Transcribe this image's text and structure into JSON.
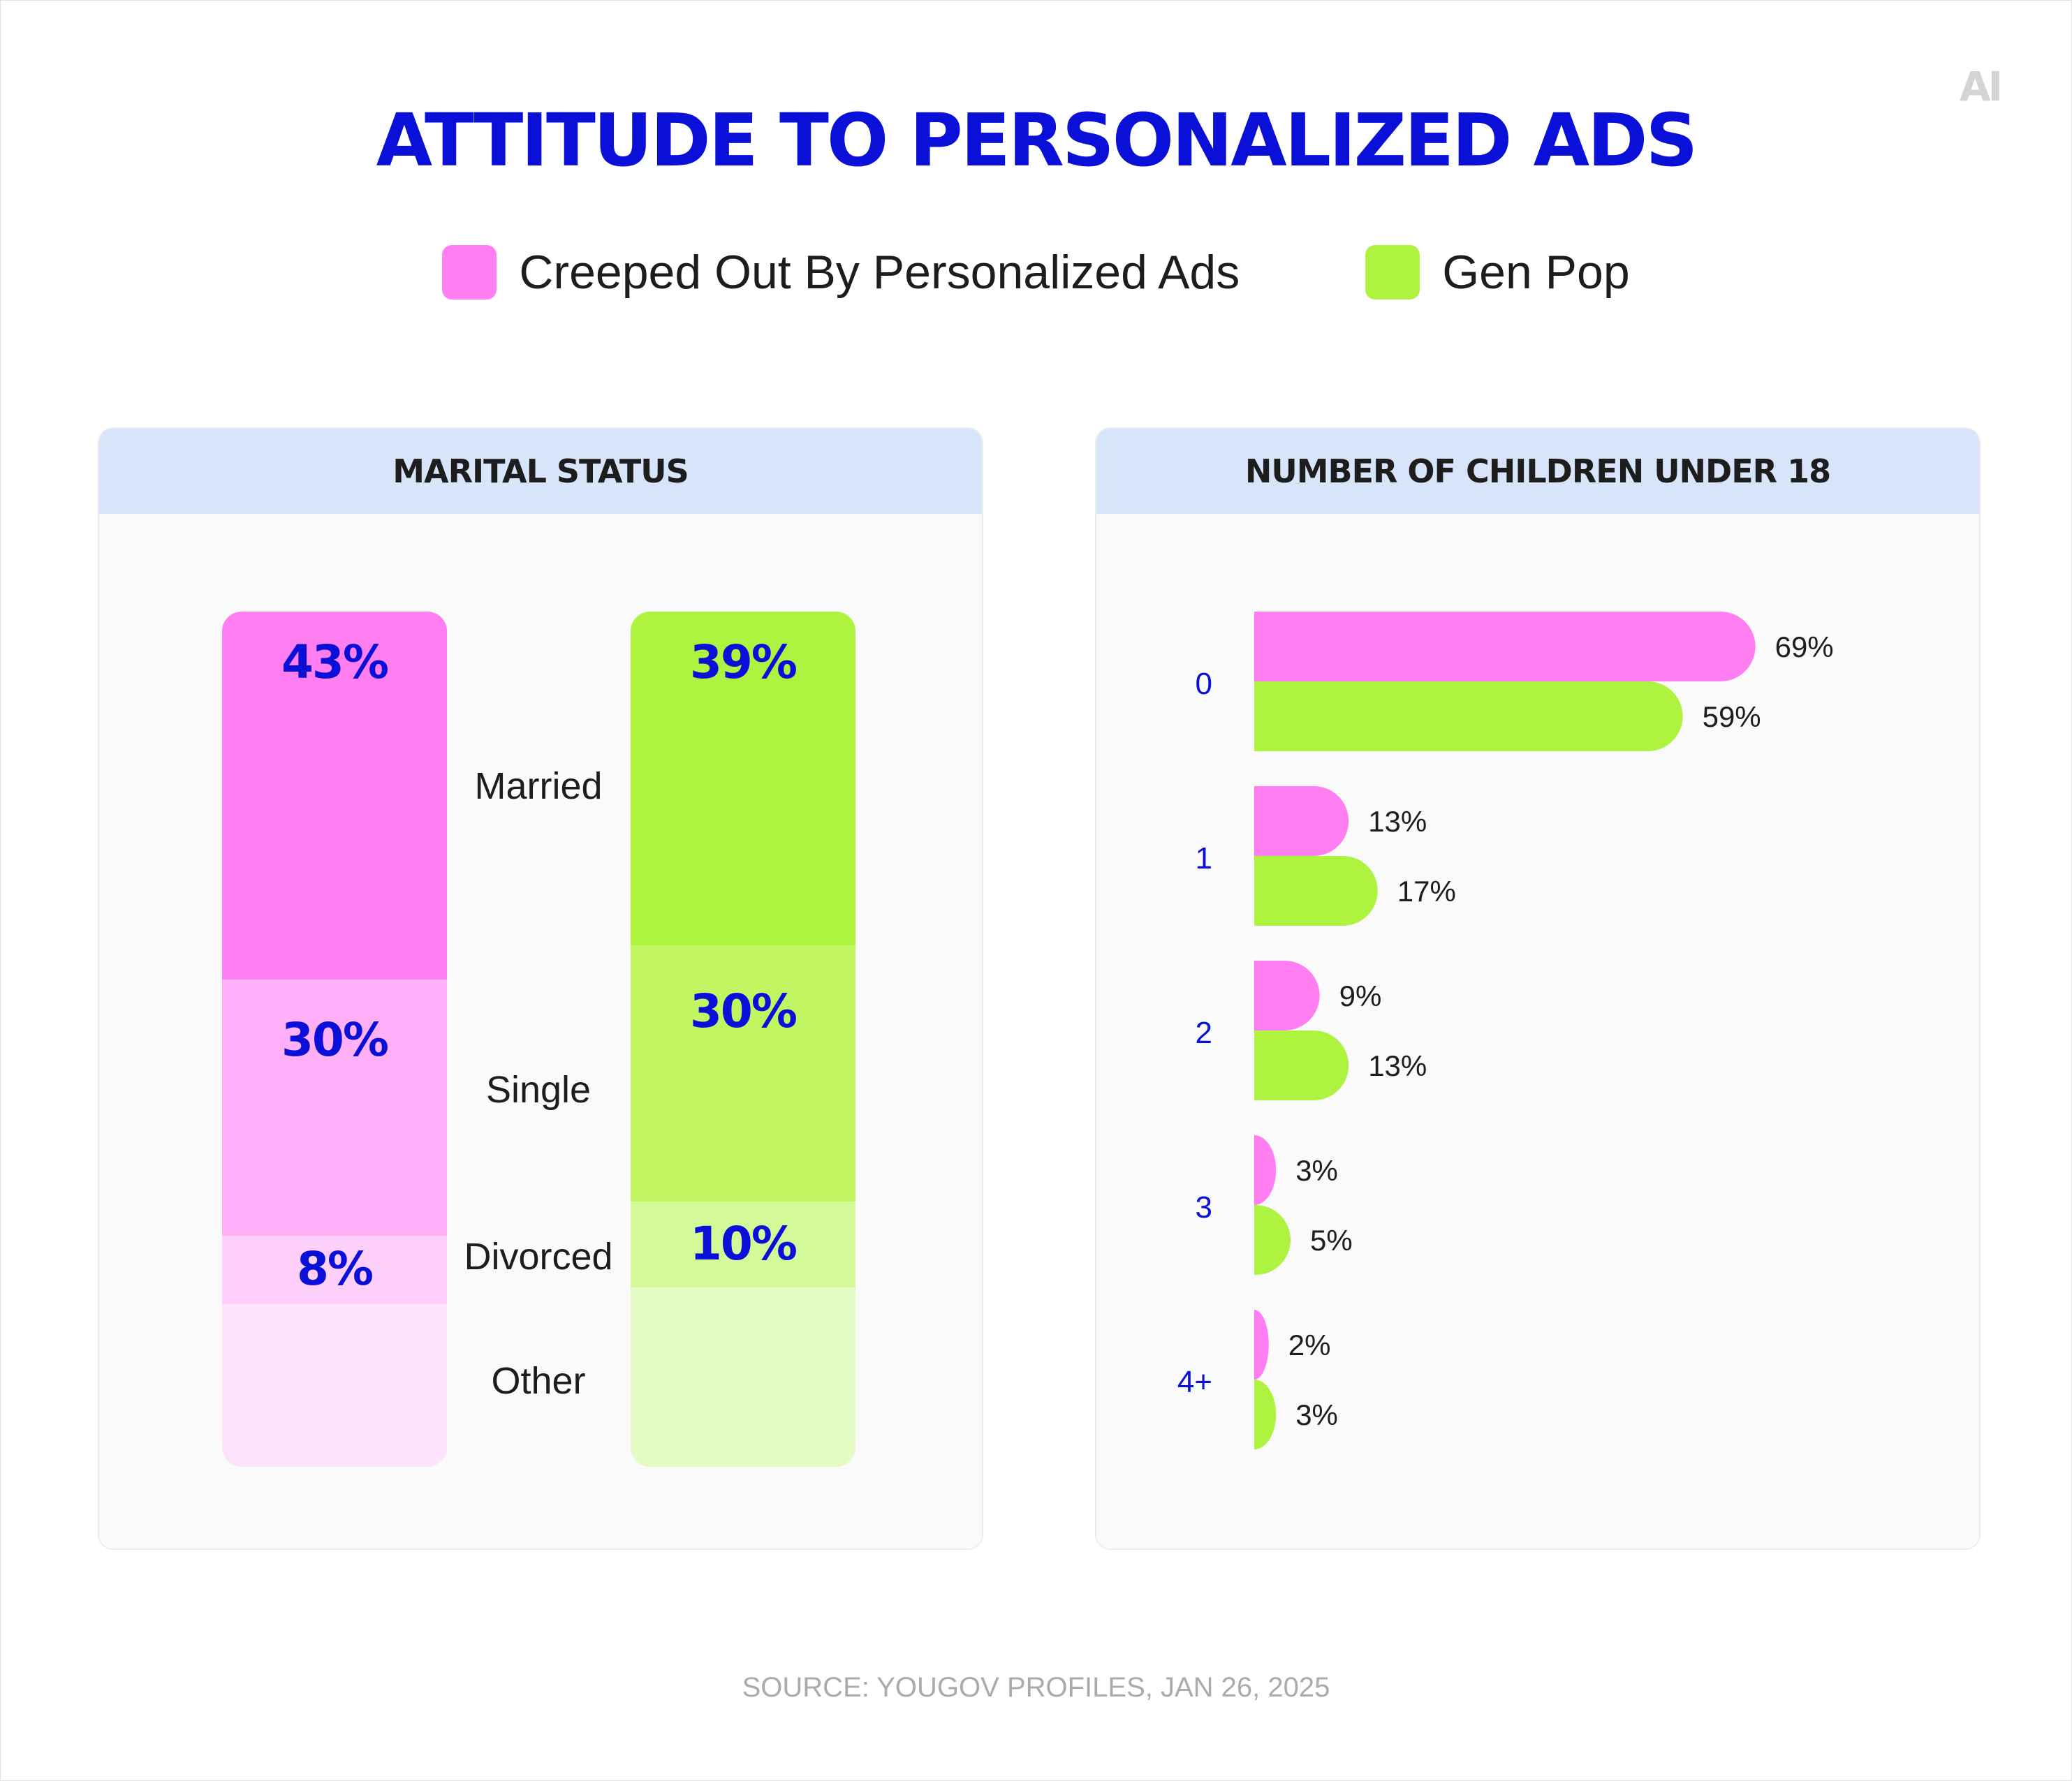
{
  "logo_text": "AI",
  "title": "ATTITUDE TO PERSONALIZED ADS",
  "legend": [
    {
      "label": "Creeped Out By Personalized Ads",
      "color": "#ff7ff2"
    },
    {
      "label": "Gen Pop",
      "color": "#aef33f"
    }
  ],
  "source": "SOURCE: YOUGOV PROFILES, JAN 26, 2025",
  "chart_data": [
    {
      "type": "bar",
      "stacked": true,
      "title": "MARITAL STATUS",
      "categories": [
        "Married",
        "Single",
        "Divorced",
        "Other"
      ],
      "series": [
        {
          "name": "Creeped Out By Personalized Ads",
          "values": [
            43,
            30,
            8,
            19
          ],
          "labels": [
            "43%",
            "30%",
            "8%",
            ""
          ],
          "colors": [
            "#ff7ff2",
            "#ffb0f8",
            "#ffcffb",
            "#fde3fc"
          ]
        },
        {
          "name": "Gen Pop",
          "values": [
            39,
            30,
            10,
            21
          ],
          "labels": [
            "39%",
            "30%",
            "10%",
            ""
          ],
          "colors": [
            "#aef33f",
            "#c1f662",
            "#d4f998",
            "#e5fbc6"
          ]
        }
      ]
    },
    {
      "type": "bar",
      "orientation": "horizontal",
      "title": "NUMBER OF CHILDREN UNDER 18",
      "categories": [
        "0",
        "1",
        "2",
        "3",
        "4+"
      ],
      "xlim": [
        0,
        100
      ],
      "series": [
        {
          "name": "Creeped Out By Personalized Ads",
          "color": "#ff7ff2",
          "values": [
            69,
            13,
            9,
            3,
            2
          ],
          "labels": [
            "69%",
            "13%",
            "9%",
            "3%",
            "2%"
          ]
        },
        {
          "name": "Gen Pop",
          "color": "#aef33f",
          "values": [
            59,
            17,
            13,
            5,
            3
          ],
          "labels": [
            "59%",
            "17%",
            "13%",
            "5%",
            "3%"
          ]
        }
      ]
    }
  ]
}
